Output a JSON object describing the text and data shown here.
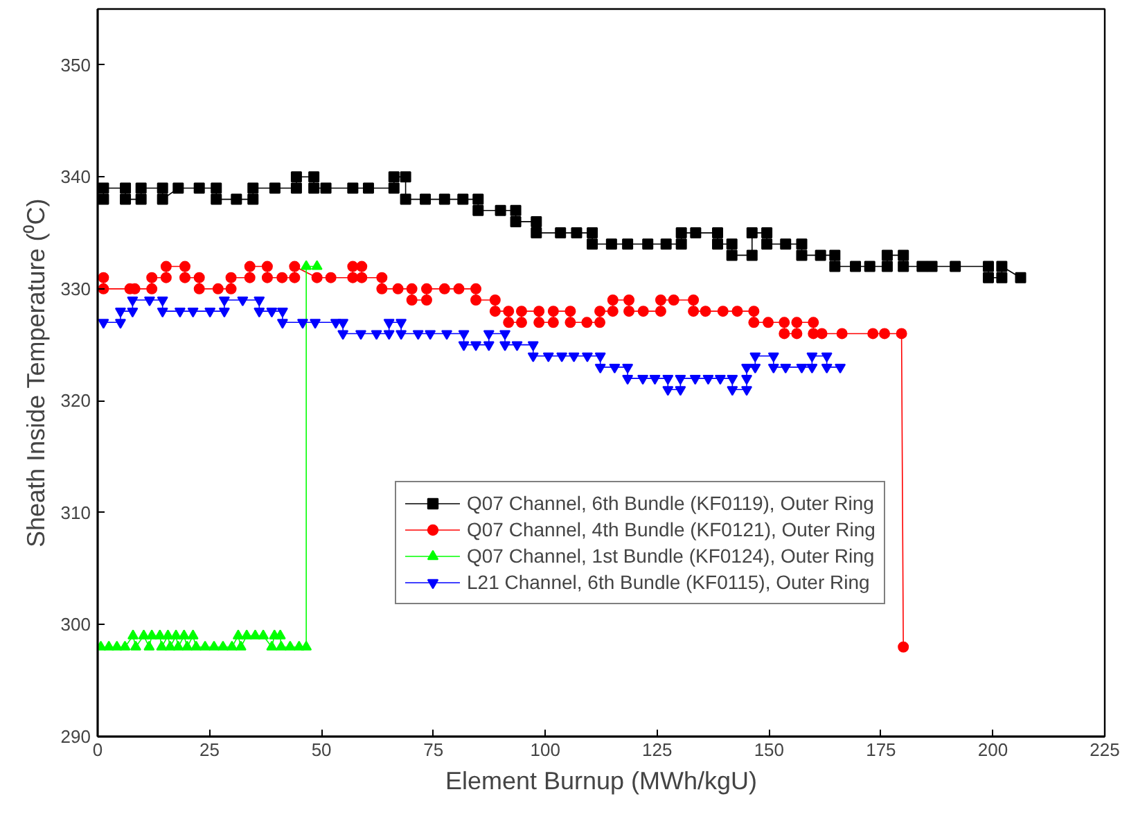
{
  "chart_data": {
    "type": "line",
    "xlabel": "Element Burnup (MWh/kgU)",
    "ylabel": "Sheath Inside Temperature (⁰C)",
    "xlim": [
      0,
      225
    ],
    "ylim": [
      290,
      355
    ],
    "xticks": [
      0,
      25,
      50,
      75,
      100,
      125,
      150,
      175,
      200,
      225
    ],
    "yticks": [
      290,
      300,
      310,
      320,
      330,
      340,
      350
    ],
    "grid": false,
    "legend": "bottom right",
    "line_style": "solid",
    "series": [
      {
        "name": "Q07 Channel, 6th Bundle (KF0119), Outer Ring",
        "color": "#000000",
        "marker": "square",
        "x": [
          1.3,
          1.3,
          6.2,
          6.2,
          9.7,
          9.7,
          14.5,
          14.5,
          18,
          22.7,
          26.5,
          26.5,
          31,
          34.7,
          34.7,
          39.6,
          44.4,
          44.4,
          48.3,
          48.3,
          51,
          57,
          60.5,
          66.2,
          66.2,
          68.8,
          68.8,
          73.2,
          77.5,
          81.6,
          85,
          85,
          90,
          93.4,
          93.4,
          98,
          98,
          103.4,
          107,
          110.5,
          110.5,
          114.8,
          118.4,
          122.9,
          127,
          130.4,
          130.4,
          133.6,
          138.5,
          138.5,
          141.7,
          141.7,
          146.2,
          146.2,
          149.5,
          149.5,
          153.7,
          157.3,
          157.3,
          161.5,
          164.7,
          164.7,
          169.3,
          172.5,
          176.4,
          176.4,
          180,
          180,
          184.2,
          186.4,
          191.6,
          199,
          199,
          202,
          202,
          206.2
        ],
        "values": [
          338,
          339,
          339,
          338,
          338,
          339,
          339,
          338,
          339,
          339,
          339,
          338,
          338,
          338,
          339,
          339,
          339,
          340,
          340,
          339,
          339,
          339,
          339,
          339,
          340,
          340,
          338,
          338,
          338,
          338,
          338,
          337,
          337,
          337,
          336,
          336,
          335,
          335,
          335,
          335,
          334,
          334,
          334,
          334,
          334,
          334,
          335,
          335,
          335,
          334,
          334,
          333,
          333,
          335,
          335,
          334,
          334,
          334,
          333,
          333,
          333,
          332,
          332,
          332,
          332,
          333,
          333,
          332,
          332,
          332,
          332,
          332,
          331,
          331,
          332,
          331
        ]
      },
      {
        "name": "Q07 Channel, 4th Bundle (KF0121), Outer Ring",
        "color": "#ff0000",
        "marker": "circle",
        "x": [
          1.3,
          1.3,
          7.2,
          8.3,
          12.1,
          12.1,
          15.3,
          15.3,
          19.5,
          19.5,
          22.7,
          22.7,
          26.9,
          29.8,
          29.8,
          34,
          34,
          37.9,
          37.9,
          41.2,
          44,
          44,
          49,
          52.1,
          57,
          57,
          59,
          59,
          63.5,
          63.5,
          67.1,
          70.2,
          70.2,
          73.5,
          73.5,
          77.5,
          80.7,
          84.5,
          84.5,
          88.8,
          88.8,
          91.8,
          91.8,
          94.7,
          94.7,
          98.6,
          98.6,
          101.8,
          101.8,
          105.6,
          105.6,
          109.3,
          112.2,
          112.2,
          115.1,
          115.1,
          118.7,
          118.7,
          121.9,
          125.8,
          125.8,
          128.7,
          133.1,
          133.1,
          135.8,
          139.7,
          142.9,
          146.6,
          146.6,
          149.8,
          153.4,
          153.4,
          156.2,
          156.2,
          159.9,
          159.9,
          161.8,
          166.3,
          173.2,
          175.8,
          179.6,
          180
        ],
        "values": [
          331,
          330,
          330,
          330,
          330,
          331,
          331,
          332,
          332,
          331,
          331,
          330,
          330,
          330,
          331,
          331,
          332,
          332,
          331,
          331,
          331,
          332,
          331,
          331,
          331,
          332,
          332,
          331,
          331,
          330,
          330,
          330,
          329,
          329,
          330,
          330,
          330,
          330,
          329,
          329,
          328,
          328,
          327,
          327,
          328,
          328,
          327,
          327,
          328,
          328,
          327,
          327,
          327,
          328,
          328,
          329,
          329,
          328,
          328,
          328,
          329,
          329,
          329,
          328,
          328,
          328,
          328,
          328,
          327,
          327,
          327,
          326,
          326,
          327,
          327,
          326,
          326,
          326,
          326,
          326,
          326,
          298
        ]
      },
      {
        "name": "Q07 Channel, 1st Bundle (KF0124), Outer Ring",
        "color": "#00ff00",
        "marker": "triangle",
        "x": [
          0.7,
          2.5,
          4.3,
          6.1,
          7.9,
          8.5,
          10.3,
          11.5,
          12.1,
          13.9,
          14.3,
          15.7,
          16.2,
          17.5,
          18,
          19.3,
          20,
          21.3,
          22,
          24,
          26,
          28,
          30,
          31.4,
          32,
          33.3,
          35.2,
          37,
          38.9,
          39.5,
          40.8,
          41,
          43,
          45,
          46.6,
          46.6,
          49
        ],
        "values": [
          298,
          298,
          298,
          298,
          299,
          298,
          299,
          298,
          299,
          299,
          298,
          299,
          298,
          299,
          298,
          299,
          298,
          299,
          298,
          298,
          298,
          298,
          298,
          299,
          298,
          299,
          299,
          299,
          298,
          299,
          299,
          298,
          298,
          298,
          298,
          332,
          332
        ]
      },
      {
        "name": "L21 Channel, 6th Bundle (KF0115), Outer Ring",
        "color": "#0000ff",
        "marker": "triangle_down",
        "x": [
          1.3,
          5.1,
          5.1,
          7.8,
          7.8,
          11.6,
          14.5,
          14.5,
          18.4,
          21.3,
          25.1,
          28.3,
          28.3,
          32.4,
          36.1,
          36.1,
          38.9,
          41.3,
          41.3,
          45.8,
          48.6,
          53.2,
          54.8,
          54.8,
          58.8,
          62.3,
          65.1,
          65.1,
          67.8,
          67.8,
          71.6,
          74.3,
          78,
          81.8,
          81.8,
          84.5,
          87.4,
          87.4,
          91,
          91,
          93.7,
          97.3,
          97.3,
          100.7,
          103.7,
          106.4,
          109.4,
          112.3,
          112.3,
          115.5,
          118.4,
          118.4,
          121.8,
          124.5,
          127.4,
          127.4,
          130.2,
          130.2,
          133.5,
          136.4,
          139.1,
          141.8,
          141.8,
          145,
          145,
          145,
          146.9,
          146.9,
          151,
          151,
          153.7,
          157.3,
          159.6,
          159.6,
          162.9,
          162.9,
          165.9
        ],
        "values": [
          327,
          327,
          328,
          328,
          329,
          329,
          329,
          328,
          328,
          328,
          328,
          328,
          329,
          329,
          329,
          328,
          328,
          328,
          327,
          327,
          327,
          327,
          327,
          326,
          326,
          326,
          326,
          327,
          327,
          326,
          326,
          326,
          326,
          326,
          325,
          325,
          325,
          326,
          326,
          325,
          325,
          325,
          324,
          324,
          324,
          324,
          324,
          324,
          323,
          323,
          323,
          322,
          322,
          322,
          322,
          321,
          321,
          322,
          322,
          322,
          322,
          322,
          321,
          321,
          322,
          323,
          323,
          324,
          324,
          323,
          323,
          323,
          323,
          324,
          324,
          323,
          323
        ]
      }
    ]
  }
}
